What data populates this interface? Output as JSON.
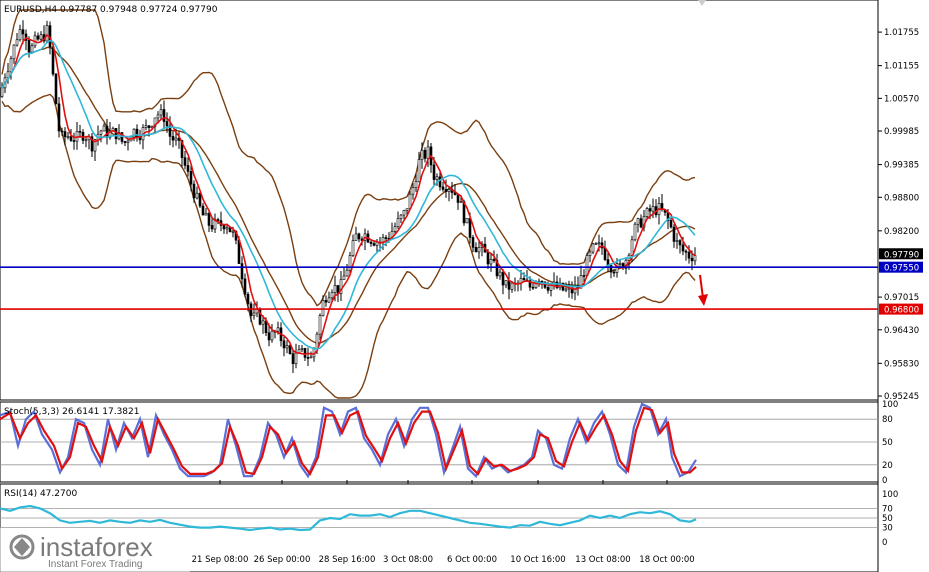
{
  "header": {
    "main_title": "EURUSD,H4 0.97787 0.97948 0.97724 0.97790",
    "stoch_title": "Stoch(5,3,3) 26.6141 17.3821",
    "rsi_title": "RSI(14) 47.2700"
  },
  "logo": {
    "brand": "instaforex",
    "tagline": "Instant Forex Trading"
  },
  "colors": {
    "candle": "#000000",
    "bollinger": "#7a3f10",
    "fast_ma": "#e01010",
    "slow_ma": "#30b8d8",
    "support_line": "#0000c0",
    "resistance_line": "#e00000",
    "stoch_main": "#5a70d8",
    "stoch_signal": "#e01010",
    "rsi_line": "#30b8d8",
    "price_tag_bg": "#000000"
  },
  "chart_data": [
    {
      "type": "candlestick",
      "symbol": "EURUSD",
      "timeframe": "H4",
      "ohlc_last": {
        "open": 0.97787,
        "high": 0.97948,
        "low": 0.97724,
        "close": 0.9779
      },
      "yaxis_ticks": [
        "1.01755",
        "1.01155",
        "1.00570",
        "0.99985",
        "0.99385",
        "0.98800",
        "0.98200",
        "0.97015",
        "0.96430",
        "0.95830",
        "0.95245"
      ],
      "ylim": [
        0.9521,
        1.0215
      ],
      "xaxis_ticks": [
        "21 Sep 08:00",
        "26 Sep 00:00",
        "28 Sep 16:00",
        "3 Oct 08:00",
        "6 Oct 00:00",
        "10 Oct 16:00",
        "13 Oct 08:00",
        "18 Oct 00:00"
      ],
      "horizontal_lines": [
        {
          "label": "0.97550",
          "value": 0.9755,
          "color": "#0000c0"
        },
        {
          "label": "0.96800",
          "value": 0.968,
          "color": "#e00000"
        }
      ],
      "current_price_label": "0.97790",
      "annotation": "red down arrow",
      "price_path": [
        [
          0,
          1.006
        ],
        [
          5,
          1.01
        ],
        [
          12,
          1.0135
        ],
        [
          18,
          1.0175
        ],
        [
          24,
          1.0185
        ],
        [
          30,
          1.014
        ],
        [
          36,
          1.016
        ],
        [
          42,
          1.0165
        ],
        [
          48,
          1.018
        ],
        [
          54,
          1.008
        ],
        [
          60,
          0.9985
        ],
        [
          68,
          0.999
        ],
        [
          76,
          0.9985
        ],
        [
          84,
          0.9995
        ],
        [
          92,
          0.9975
        ],
        [
          100,
          1.0
        ],
        [
          108,
          0.9995
        ],
        [
          116,
          0.9995
        ],
        [
          124,
          0.9975
        ],
        [
          132,
          1.0
        ],
        [
          140,
          0.9995
        ],
        [
          148,
          1.0005
        ],
        [
          156,
          1.003
        ],
        [
          164,
          1.0025
        ],
        [
          170,
          0.999
        ],
        [
          178,
          0.9975
        ],
        [
          186,
          0.993
        ],
        [
          194,
          0.989
        ],
        [
          202,
          0.985
        ],
        [
          210,
          0.983
        ],
        [
          218,
          0.983
        ],
        [
          226,
          0.9835
        ],
        [
          234,
          0.981
        ],
        [
          240,
          0.976
        ],
        [
          246,
          0.971
        ],
        [
          252,
          0.966
        ],
        [
          258,
          0.967
        ],
        [
          264,
          0.965
        ],
        [
          270,
          0.963
        ],
        [
          276,
          0.964
        ],
        [
          284,
          0.962
        ],
        [
          292,
          0.959
        ],
        [
          300,
          0.96
        ],
        [
          306,
          0.96
        ],
        [
          312,
          0.959
        ],
        [
          318,
          0.965
        ],
        [
          324,
          0.97
        ],
        [
          332,
          0.972
        ],
        [
          340,
          0.9715
        ],
        [
          348,
          0.976
        ],
        [
          356,
          0.981
        ],
        [
          364,
          0.9815
        ],
        [
          372,
          0.9805
        ],
        [
          380,
          0.98
        ],
        [
          388,
          0.981
        ],
        [
          396,
          0.983
        ],
        [
          404,
          0.985
        ],
        [
          412,
          0.989
        ],
        [
          420,
          0.995
        ],
        [
          428,
          0.996
        ],
        [
          434,
          0.992
        ],
        [
          442,
          0.9905
        ],
        [
          450,
          0.99
        ],
        [
          458,
          0.988
        ],
        [
          466,
          0.9835
        ],
        [
          474,
          0.9795
        ],
        [
          482,
          0.9785
        ],
        [
          490,
          0.9765
        ],
        [
          498,
          0.9745
        ],
        [
          506,
          0.972
        ],
        [
          514,
          0.972
        ],
        [
          522,
          0.973
        ],
        [
          530,
          0.972
        ],
        [
          538,
          0.974
        ],
        [
          546,
          0.9725
        ],
        [
          554,
          0.972
        ],
        [
          562,
          0.9715
        ],
        [
          570,
          0.971
        ],
        [
          578,
          0.972
        ],
        [
          586,
          0.976
        ],
        [
          594,
          0.979
        ],
        [
          602,
          0.979
        ],
        [
          610,
          0.976
        ],
        [
          618,
          0.975
        ],
        [
          626,
          0.977
        ],
        [
          634,
          0.982
        ],
        [
          642,
          0.984
        ],
        [
          650,
          0.9855
        ],
        [
          658,
          0.986
        ],
        [
          664,
          0.985
        ],
        [
          670,
          0.983
        ],
        [
          676,
          0.98
        ],
        [
          682,
          0.9785
        ],
        [
          690,
          0.9775
        ],
        [
          696,
          0.9779
        ]
      ]
    },
    {
      "type": "line",
      "name": "Stoch(5,3,3)",
      "ylim": [
        0,
        100
      ],
      "yaxis_ticks": [
        "100",
        "80",
        "50",
        "20",
        "0"
      ],
      "levels": [
        80,
        50,
        20
      ],
      "main_value": 26.6141,
      "signal_value": 17.3821,
      "main": [
        [
          0,
          85
        ],
        [
          10,
          90
        ],
        [
          18,
          45
        ],
        [
          26,
          80
        ],
        [
          34,
          90
        ],
        [
          42,
          60
        ],
        [
          52,
          40
        ],
        [
          60,
          10
        ],
        [
          68,
          30
        ],
        [
          76,
          80
        ],
        [
          84,
          75
        ],
        [
          92,
          40
        ],
        [
          100,
          20
        ],
        [
          108,
          80
        ],
        [
          116,
          40
        ],
        [
          124,
          75
        ],
        [
          132,
          55
        ],
        [
          140,
          80
        ],
        [
          148,
          30
        ],
        [
          156,
          85
        ],
        [
          164,
          60
        ],
        [
          172,
          40
        ],
        [
          180,
          15
        ],
        [
          188,
          5
        ],
        [
          196,
          5
        ],
        [
          204,
          5
        ],
        [
          212,
          10
        ],
        [
          220,
          20
        ],
        [
          228,
          80
        ],
        [
          236,
          45
        ],
        [
          244,
          5
        ],
        [
          252,
          5
        ],
        [
          260,
          30
        ],
        [
          268,
          75
        ],
        [
          276,
          60
        ],
        [
          284,
          30
        ],
        [
          292,
          55
        ],
        [
          300,
          20
        ],
        [
          308,
          5
        ],
        [
          316,
          30
        ],
        [
          324,
          95
        ],
        [
          332,
          90
        ],
        [
          340,
          60
        ],
        [
          348,
          90
        ],
        [
          356,
          95
        ],
        [
          364,
          55
        ],
        [
          372,
          40
        ],
        [
          380,
          20
        ],
        [
          388,
          60
        ],
        [
          396,
          80
        ],
        [
          404,
          45
        ],
        [
          412,
          80
        ],
        [
          420,
          95
        ],
        [
          428,
          95
        ],
        [
          436,
          60
        ],
        [
          444,
          10
        ],
        [
          452,
          40
        ],
        [
          460,
          70
        ],
        [
          468,
          15
        ],
        [
          476,
          5
        ],
        [
          484,
          30
        ],
        [
          492,
          15
        ],
        [
          500,
          20
        ],
        [
          508,
          10
        ],
        [
          516,
          15
        ],
        [
          524,
          20
        ],
        [
          532,
          30
        ],
        [
          538,
          65
        ],
        [
          546,
          55
        ],
        [
          554,
          20
        ],
        [
          562,
          15
        ],
        [
          570,
          55
        ],
        [
          578,
          80
        ],
        [
          586,
          50
        ],
        [
          594,
          75
        ],
        [
          602,
          90
        ],
        [
          610,
          60
        ],
        [
          618,
          20
        ],
        [
          626,
          10
        ],
        [
          634,
          70
        ],
        [
          642,
          100
        ],
        [
          650,
          95
        ],
        [
          658,
          60
        ],
        [
          666,
          80
        ],
        [
          672,
          30
        ],
        [
          680,
          5
        ],
        [
          688,
          10
        ],
        [
          696,
          26.6
        ]
      ],
      "signal": [
        [
          0,
          80
        ],
        [
          10,
          88
        ],
        [
          20,
          55
        ],
        [
          28,
          75
        ],
        [
          36,
          85
        ],
        [
          44,
          65
        ],
        [
          54,
          45
        ],
        [
          62,
          15
        ],
        [
          70,
          30
        ],
        [
          78,
          75
        ],
        [
          86,
          70
        ],
        [
          94,
          45
        ],
        [
          102,
          25
        ],
        [
          110,
          70
        ],
        [
          118,
          45
        ],
        [
          126,
          70
        ],
        [
          134,
          55
        ],
        [
          142,
          75
        ],
        [
          150,
          35
        ],
        [
          158,
          80
        ],
        [
          166,
          60
        ],
        [
          174,
          40
        ],
        [
          182,
          18
        ],
        [
          190,
          8
        ],
        [
          198,
          8
        ],
        [
          206,
          8
        ],
        [
          214,
          12
        ],
        [
          222,
          22
        ],
        [
          230,
          70
        ],
        [
          238,
          45
        ],
        [
          246,
          10
        ],
        [
          254,
          8
        ],
        [
          262,
          30
        ],
        [
          270,
          70
        ],
        [
          278,
          60
        ],
        [
          286,
          35
        ],
        [
          294,
          50
        ],
        [
          302,
          22
        ],
        [
          310,
          8
        ],
        [
          318,
          30
        ],
        [
          326,
          85
        ],
        [
          334,
          85
        ],
        [
          342,
          62
        ],
        [
          350,
          85
        ],
        [
          358,
          90
        ],
        [
          366,
          58
        ],
        [
          374,
          42
        ],
        [
          382,
          25
        ],
        [
          390,
          55
        ],
        [
          398,
          75
        ],
        [
          406,
          48
        ],
        [
          414,
          75
        ],
        [
          422,
          90
        ],
        [
          430,
          90
        ],
        [
          438,
          62
        ],
        [
          446,
          15
        ],
        [
          454,
          40
        ],
        [
          462,
          65
        ],
        [
          470,
          18
        ],
        [
          478,
          8
        ],
        [
          486,
          28
        ],
        [
          494,
          18
        ],
        [
          502,
          20
        ],
        [
          510,
          12
        ],
        [
          518,
          15
        ],
        [
          526,
          20
        ],
        [
          534,
          30
        ],
        [
          540,
          60
        ],
        [
          548,
          55
        ],
        [
          556,
          25
        ],
        [
          564,
          18
        ],
        [
          572,
          50
        ],
        [
          580,
          75
        ],
        [
          588,
          52
        ],
        [
          596,
          70
        ],
        [
          604,
          85
        ],
        [
          612,
          60
        ],
        [
          620,
          25
        ],
        [
          628,
          12
        ],
        [
          636,
          65
        ],
        [
          644,
          95
        ],
        [
          652,
          92
        ],
        [
          660,
          62
        ],
        [
          668,
          75
        ],
        [
          674,
          35
        ],
        [
          682,
          10
        ],
        [
          690,
          10
        ],
        [
          696,
          17.4
        ]
      ]
    },
    {
      "type": "line",
      "name": "RSI(14)",
      "ylim": [
        0,
        100
      ],
      "yaxis_ticks": [
        "100",
        "70",
        "50",
        "30",
        "0"
      ],
      "levels": [
        70,
        50,
        30
      ],
      "current_value": 47.27,
      "values": [
        [
          0,
          70
        ],
        [
          10,
          65
        ],
        [
          20,
          72
        ],
        [
          30,
          75
        ],
        [
          40,
          70
        ],
        [
          50,
          60
        ],
        [
          60,
          45
        ],
        [
          70,
          40
        ],
        [
          80,
          42
        ],
        [
          90,
          44
        ],
        [
          100,
          40
        ],
        [
          110,
          45
        ],
        [
          120,
          42
        ],
        [
          130,
          40
        ],
        [
          140,
          45
        ],
        [
          150,
          42
        ],
        [
          160,
          46
        ],
        [
          170,
          40
        ],
        [
          180,
          36
        ],
        [
          190,
          32
        ],
        [
          200,
          30
        ],
        [
          210,
          30
        ],
        [
          220,
          32
        ],
        [
          230,
          30
        ],
        [
          240,
          28
        ],
        [
          250,
          25
        ],
        [
          260,
          28
        ],
        [
          270,
          30
        ],
        [
          280,
          26
        ],
        [
          290,
          28
        ],
        [
          300,
          25
        ],
        [
          310,
          26
        ],
        [
          320,
          45
        ],
        [
          330,
          50
        ],
        [
          340,
          48
        ],
        [
          350,
          58
        ],
        [
          360,
          55
        ],
        [
          370,
          55
        ],
        [
          380,
          58
        ],
        [
          390,
          52
        ],
        [
          400,
          60
        ],
        [
          410,
          65
        ],
        [
          420,
          65
        ],
        [
          430,
          60
        ],
        [
          440,
          55
        ],
        [
          450,
          50
        ],
        [
          460,
          45
        ],
        [
          470,
          40
        ],
        [
          480,
          38
        ],
        [
          490,
          35
        ],
        [
          500,
          32
        ],
        [
          510,
          30
        ],
        [
          520,
          35
        ],
        [
          530,
          34
        ],
        [
          540,
          42
        ],
        [
          550,
          38
        ],
        [
          560,
          35
        ],
        [
          570,
          40
        ],
        [
          580,
          45
        ],
        [
          590,
          55
        ],
        [
          600,
          50
        ],
        [
          610,
          55
        ],
        [
          620,
          50
        ],
        [
          630,
          58
        ],
        [
          640,
          62
        ],
        [
          650,
          60
        ],
        [
          660,
          64
        ],
        [
          670,
          58
        ],
        [
          680,
          45
        ],
        [
          690,
          42
        ],
        [
          696,
          47.3
        ]
      ]
    }
  ]
}
